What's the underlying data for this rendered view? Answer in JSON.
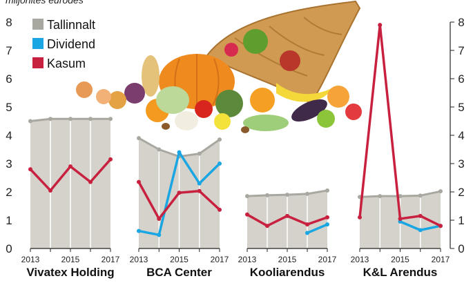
{
  "subtitle": "miljonites eurodes",
  "colors": {
    "area_fill": "#d4d2cb",
    "area_line": "#a9a8a0",
    "dividend": "#1aa6e2",
    "kasum": "#c8213f",
    "grid": "#ffffff",
    "axis_text": "#222222"
  },
  "legend": [
    {
      "label": "Tallinnalt",
      "color": "#a9a8a0"
    },
    {
      "label": "Dividend",
      "color": "#1aa6e2"
    },
    {
      "label": "Kasum",
      "color": "#c8213f"
    }
  ],
  "decoration": "cornucopia-illustration",
  "chart_data": {
    "type": "area",
    "y_range": [
      0,
      8
    ],
    "y_ticks": [
      "0",
      "1",
      "2",
      "3",
      "4",
      "5",
      "6",
      "7",
      "8"
    ],
    "years": [
      2013,
      2014,
      2015,
      2016,
      2017
    ],
    "x_tick_labels": [
      "2013",
      "2015",
      "2017"
    ],
    "legend_position": "top-left",
    "panels": [
      {
        "title": "Vivatex Holding",
        "series": [
          {
            "name": "Tallinnalt",
            "style": "area",
            "values": [
              4.5,
              4.58,
              4.58,
              4.58,
              4.58
            ]
          },
          {
            "name": "Dividend",
            "style": "line",
            "values": [
              null,
              null,
              null,
              null,
              null
            ]
          },
          {
            "name": "Kasum",
            "style": "line",
            "values": [
              2.8,
              2.05,
              2.9,
              2.35,
              3.15
            ]
          }
        ]
      },
      {
        "title": "BCA Center",
        "series": [
          {
            "name": "Tallinnalt",
            "style": "area",
            "values": [
              3.9,
              3.5,
              3.25,
              3.35,
              3.85
            ]
          },
          {
            "name": "Dividend",
            "style": "line",
            "values": [
              0.62,
              0.48,
              3.4,
              2.3,
              3.0
            ]
          },
          {
            "name": "Kasum",
            "style": "line",
            "values": [
              2.35,
              1.05,
              1.97,
              2.03,
              1.37
            ]
          }
        ]
      },
      {
        "title": "Kooliarendus",
        "series": [
          {
            "name": "Tallinnalt",
            "style": "area",
            "values": [
              1.85,
              1.88,
              1.9,
              1.93,
              2.05
            ]
          },
          {
            "name": "Dividend",
            "style": "line",
            "values": [
              null,
              null,
              null,
              0.55,
              0.85
            ]
          },
          {
            "name": "Kasum",
            "style": "line",
            "values": [
              1.2,
              0.8,
              1.15,
              0.85,
              1.1
            ]
          }
        ]
      },
      {
        "title": "K&L Arendus",
        "series": [
          {
            "name": "Tallinnalt",
            "style": "area",
            "values": [
              1.82,
              1.85,
              1.85,
              1.87,
              2.02
            ]
          },
          {
            "name": "Dividend",
            "style": "line",
            "values": [
              null,
              null,
              0.95,
              0.65,
              0.8
            ]
          },
          {
            "name": "Kasum",
            "style": "line",
            "values": [
              1.1,
              7.9,
              1.05,
              1.15,
              0.8
            ]
          }
        ]
      }
    ]
  }
}
